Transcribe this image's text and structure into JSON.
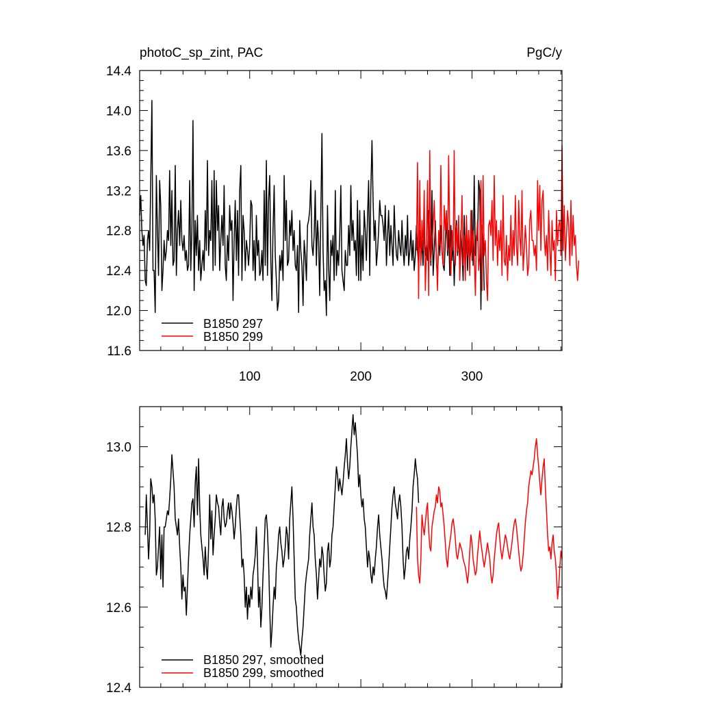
{
  "chart_data": [
    {
      "type": "line",
      "title_left": "photoC_sp_zint, PAC",
      "title_right": "PgC/y",
      "xlim": [
        1,
        381
      ],
      "ylim": [
        11.6,
        14.4
      ],
      "x_ticks": [
        100,
        200,
        300
      ],
      "x_tick_labels": [
        "100",
        "200",
        "300"
      ],
      "y_ticks": [
        11.6,
        12.0,
        12.4,
        12.8,
        13.2,
        13.6,
        14.0,
        14.4
      ],
      "y_tick_labels": [
        "11.6",
        "12.0",
        "12.4",
        "12.8",
        "13.2",
        "13.6",
        "14.0",
        "14.4"
      ],
      "legend_position": "bottom-left",
      "series": [
        {
          "name": "B1850 297",
          "color": "#000000",
          "x_start": 1,
          "values": [
            12.95,
            13.15,
            12.8,
            12.65,
            12.75,
            12.3,
            12.25,
            12.7,
            12.8,
            12.6,
            13.3,
            14.1,
            12.4,
            12.4,
            11.98,
            13.35,
            12.8,
            12.35,
            13.3,
            13.05,
            12.2,
            12.4,
            12.7,
            12.5,
            12.6,
            12.8,
            12.7,
            13.4,
            12.65,
            13.2,
            12.45,
            12.5,
            13.45,
            12.35,
            12.8,
            13.0,
            12.65,
            13.1,
            12.7,
            12.6,
            12.75,
            12.5,
            12.6,
            12.4,
            12.45,
            13.3,
            12.4,
            12.8,
            13.9,
            12.2,
            12.9,
            12.55,
            12.95,
            12.4,
            12.7,
            12.3,
            12.45,
            12.6,
            12.4,
            13.0,
            12.6,
            13.5,
            12.55,
            12.8,
            12.7,
            13.3,
            12.4,
            13.4,
            12.45,
            13.3,
            12.8,
            13.05,
            12.4,
            12.7,
            12.95,
            12.65,
            13.25,
            12.45,
            12.3,
            12.75,
            12.5,
            13.05,
            12.8,
            12.9,
            12.1,
            12.7,
            13.1,
            12.5,
            13.0,
            12.35,
            13.2,
            13.45,
            12.3,
            12.95,
            12.8,
            12.4,
            12.7,
            12.6,
            12.45,
            12.65,
            13.1,
            13.05,
            12.4,
            12.7,
            12.3,
            12.95,
            12.55,
            12.7,
            12.35,
            12.4,
            12.6,
            12.3,
            13.2,
            12.45,
            13.5,
            12.35,
            13.1,
            13.35,
            12.5,
            12.1,
            12.8,
            13.25,
            12.55,
            12.3,
            12.0,
            12.1,
            12.55,
            12.4,
            12.6,
            12.3,
            13.35,
            12.7,
            13.1,
            12.45,
            12.5,
            12.9,
            12.75,
            13.0,
            12.6,
            12.8,
            12.45,
            12.4,
            12.65,
            11.98,
            12.9,
            12.6,
            12.45,
            12.05,
            12.7,
            12.55,
            12.3,
            12.85,
            12.9,
            13.0,
            13.3,
            12.65,
            12.55,
            12.75,
            13.2,
            12.45,
            12.9,
            12.7,
            12.15,
            13.0,
            13.77,
            12.6,
            12.2,
            12.3,
            11.95,
            13.05,
            12.45,
            12.1,
            12.7,
            12.55,
            12.75,
            12.3,
            13.2,
            12.35,
            12.6,
            12.45,
            12.75,
            13.25,
            12.4,
            12.3,
            12.2,
            12.6,
            12.45,
            12.45,
            12.85,
            12.55,
            13.25,
            12.7,
            12.9,
            12.6,
            12.7,
            12.35,
            13.1,
            12.3,
            13.0,
            12.3,
            12.75,
            12.4,
            13.0,
            12.8,
            12.5,
            12.95,
            13.3,
            12.35,
            13.2,
            13.7,
            13.1,
            12.7,
            12.9,
            12.45,
            12.6,
            12.8,
            13.1,
            12.95,
            12.95,
            12.85,
            12.7,
            13.05,
            12.45,
            12.75,
            13.0,
            12.55,
            12.85,
            12.65,
            12.45,
            13.05,
            12.75,
            12.55,
            12.5,
            12.8,
            12.65,
            12.55,
            12.9,
            12.6,
            12.45,
            12.75,
            12.55,
            12.95,
            12.45,
            12.6,
            12.8,
            12.5,
            12.7,
            12.4,
            12.55,
            12.85,
            12.6,
            12.45,
            12.8,
            12.5,
            12.7,
            12.45,
            12.85,
            12.55,
            12.65,
            12.5,
            13.0,
            12.7,
            12.45,
            13.2,
            12.35,
            12.6,
            12.9,
            12.5,
            12.3,
            12.75,
            12.55,
            12.85,
            12.6,
            12.45,
            12.4,
            12.7,
            12.9,
            12.55,
            12.8,
            12.35,
            12.85,
            12.5,
            12.7,
            12.25,
            12.65,
            12.9,
            12.55,
            12.75,
            12.45,
            12.8,
            12.6,
            12.3,
            12.95,
            12.55,
            12.75,
            12.4,
            12.8,
            12.5,
            12.6,
            13.0,
            12.45,
            13.35,
            12.55,
            12.75,
            12.7,
            13.3,
            13.2,
            12.01,
            12.85,
            12.7,
            12.2
          ]
        },
        {
          "name": "B1850 299",
          "color": "#ff0000",
          "x_start": 250,
          "values": [
            12.6,
            13.48,
            12.12,
            13.3,
            12.45,
            12.9,
            12.6,
            13.2,
            12.2,
            12.6,
            13.3,
            12.15,
            13.6,
            12.5,
            12.65,
            12.85,
            13.1,
            12.7,
            12.55,
            12.2,
            12.8,
            12.65,
            13.45,
            12.6,
            12.45,
            13.05,
            12.8,
            13.0,
            12.6,
            13.55,
            12.7,
            12.35,
            12.8,
            12.6,
            13.6,
            12.45,
            12.85,
            12.6,
            12.95,
            12.3,
            12.65,
            13.15,
            12.45,
            12.75,
            12.3,
            12.95,
            12.55,
            12.8,
            12.35,
            13.0,
            12.5,
            12.8,
            12.6,
            12.15,
            12.7,
            12.9,
            12.4,
            12.55,
            13.3,
            12.2,
            13.35,
            12.55,
            12.7,
            12.3,
            12.1,
            12.85,
            12.9,
            12.75,
            13.1,
            12.5,
            13.35,
            12.65,
            12.9,
            12.45,
            12.8,
            12.6,
            12.9,
            12.35,
            13.15,
            12.5,
            12.45,
            12.75,
            12.3,
            12.65,
            12.5,
            12.95,
            12.45,
            12.8,
            12.55,
            13.15,
            12.65,
            12.45,
            13.1,
            12.75,
            12.55,
            13.2,
            12.4,
            12.6,
            12.85,
            12.65,
            12.35,
            12.45,
            12.9,
            13.0,
            12.7,
            12.7,
            12.55,
            12.65,
            12.4,
            13.3,
            12.8,
            13.25,
            12.6,
            13.1,
            13.2,
            12.75,
            12.55,
            12.75,
            12.4,
            13.0,
            12.65,
            12.35,
            12.9,
            12.6,
            12.7,
            12.3,
            13.0,
            12.65,
            12.85,
            12.9,
            12.55,
            13.65,
            12.6,
            13.05,
            12.5,
            12.75,
            13.0,
            12.85,
            12.45,
            13.1,
            12.55,
            12.95,
            12.65,
            12.75,
            12.45,
            12.3,
            12.5
          ]
        }
      ]
    },
    {
      "type": "line",
      "xlim": [
        1,
        381
      ],
      "ylim": [
        12.4,
        13.1
      ],
      "y_ticks": [
        12.4,
        12.6,
        12.8,
        13.0
      ],
      "y_tick_labels": [
        "12.4",
        "12.6",
        "12.8",
        "13.0"
      ],
      "legend_position": "bottom-left",
      "series": [
        {
          "name": "B1850 297, smoothed",
          "color": "#000000",
          "x_start": 6,
          "values": [
            12.78,
            12.88,
            12.8,
            12.72,
            12.78,
            12.92,
            12.9,
            12.86,
            12.88,
            12.82,
            12.68,
            12.7,
            12.75,
            12.8,
            12.67,
            12.78,
            12.65,
            12.8,
            12.8,
            12.82,
            12.84,
            12.83,
            12.87,
            12.92,
            12.98,
            12.94,
            12.9,
            12.82,
            12.8,
            12.78,
            12.82,
            12.75,
            12.7,
            12.62,
            12.68,
            12.64,
            12.65,
            12.58,
            12.65,
            12.72,
            12.78,
            12.82,
            12.86,
            12.87,
            12.8,
            12.91,
            12.95,
            12.83,
            12.97,
            12.85,
            12.78,
            12.75,
            12.72,
            12.68,
            12.75,
            12.7,
            12.67,
            12.75,
            12.88,
            12.77,
            12.84,
            12.73,
            12.78,
            12.82,
            12.88,
            12.86,
            12.85,
            12.81,
            12.78,
            12.85,
            12.87,
            12.82,
            12.8,
            12.81,
            12.84,
            12.86,
            12.82,
            12.86,
            12.84,
            12.81,
            12.77,
            12.8,
            12.85,
            12.88,
            12.88,
            12.83,
            12.78,
            12.7,
            12.72,
            12.68,
            12.6,
            12.65,
            12.57,
            12.63,
            12.6,
            12.65,
            12.62,
            12.68,
            12.7,
            12.73,
            12.8,
            12.72,
            12.6,
            12.65,
            12.55,
            12.6,
            12.68,
            12.75,
            12.82,
            12.83,
            12.79,
            12.72,
            12.6,
            12.5,
            12.54,
            12.6,
            12.65,
            12.62,
            12.7,
            12.73,
            12.78,
            12.8,
            12.76,
            12.74,
            12.7,
            12.72,
            12.75,
            12.8,
            12.78,
            12.72,
            12.82,
            12.86,
            12.9,
            12.82,
            12.72,
            12.62,
            12.6,
            12.55,
            12.52,
            12.5,
            12.48,
            12.52,
            12.55,
            12.6,
            12.65,
            12.68,
            12.7,
            12.72,
            12.78,
            12.82,
            12.86,
            12.8,
            12.78,
            12.72,
            12.68,
            12.62,
            12.67,
            12.72,
            12.7,
            12.75,
            12.73,
            12.68,
            12.64,
            12.66,
            12.74,
            12.76,
            12.7,
            12.72,
            12.78,
            12.8,
            12.85,
            12.9,
            12.95,
            12.93,
            12.89,
            12.92,
            12.9,
            12.88,
            12.91,
            12.95,
            12.98,
            13.02,
            12.96,
            12.92,
            12.95,
            13.0,
            13.04,
            13.08,
            13.03,
            13.06,
            13.02,
            12.98,
            12.9,
            12.93,
            12.88,
            12.85,
            12.87,
            12.82,
            12.8,
            12.75,
            12.7,
            12.74,
            12.72,
            12.68,
            12.66,
            12.7,
            12.68,
            12.72,
            12.75,
            12.8,
            12.83,
            12.78,
            12.75,
            12.72,
            12.68,
            12.65,
            12.64,
            12.62,
            12.66,
            12.7,
            12.75,
            12.8,
            12.85,
            12.88,
            12.9,
            12.86,
            12.84,
            12.82,
            12.86,
            12.88,
            12.85,
            12.8,
            12.72,
            12.67,
            12.7,
            12.74,
            12.75,
            12.72,
            12.77,
            12.8,
            12.84,
            12.9,
            12.93,
            12.97,
            12.94,
            12.92,
            12.86
          ]
        },
        {
          "name": "B1850 299, smoothed",
          "color": "#ff0000",
          "x_start": 250,
          "values": [
            12.85,
            12.72,
            12.68,
            12.66,
            12.72,
            12.83,
            12.8,
            12.78,
            12.81,
            12.84,
            12.86,
            12.79,
            12.75,
            12.74,
            12.8,
            12.82,
            12.84,
            12.85,
            12.88,
            12.86,
            12.9,
            12.89,
            12.85,
            12.86,
            12.83,
            12.8,
            12.76,
            12.72,
            12.7,
            12.74,
            12.76,
            12.78,
            12.81,
            12.82,
            12.8,
            12.77,
            12.73,
            12.72,
            12.74,
            12.76,
            12.75,
            12.74,
            12.72,
            12.71,
            12.7,
            12.68,
            12.66,
            12.69,
            12.74,
            12.78,
            12.76,
            12.72,
            12.7,
            12.68,
            12.69,
            12.73,
            12.76,
            12.79,
            12.76,
            12.74,
            12.72,
            12.7,
            12.72,
            12.74,
            12.76,
            12.74,
            12.72,
            12.68,
            12.66,
            12.68,
            12.72,
            12.75,
            12.78,
            12.8,
            12.81,
            12.77,
            12.74,
            12.72,
            12.74,
            12.76,
            12.78,
            12.77,
            12.75,
            12.73,
            12.72,
            12.74,
            12.76,
            12.79,
            12.81,
            12.82,
            12.8,
            12.77,
            12.74,
            12.71,
            12.69,
            12.7,
            12.73,
            12.77,
            12.81,
            12.84,
            12.86,
            12.9,
            12.92,
            12.94,
            12.93,
            12.95,
            12.97,
            13.0,
            13.02,
            12.98,
            12.95,
            12.91,
            12.88,
            12.92,
            12.95,
            12.97,
            12.9,
            12.84,
            12.78,
            12.74,
            12.75,
            12.72,
            12.76,
            12.78,
            12.74,
            12.72,
            12.68,
            12.62,
            12.65,
            12.7,
            12.74,
            12.72
          ]
        }
      ]
    }
  ]
}
